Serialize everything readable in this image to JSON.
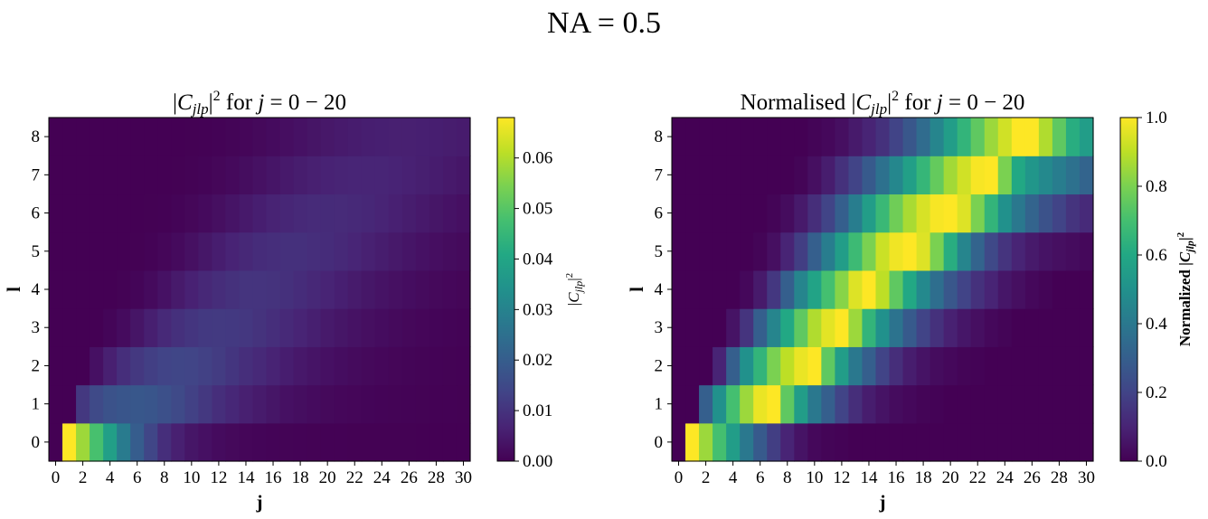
{
  "figure": {
    "suptitle": "NA = 0.5"
  },
  "chart_data": [
    {
      "type": "heatmap",
      "title": "|C_jlp|² for j = 0 − 20",
      "xlabel": "j",
      "ylabel": "l",
      "colorbar_label": "|C_jlp|²",
      "colormap": "viridis",
      "x_range": [
        -0.5,
        30.5
      ],
      "y_range": [
        -0.5,
        8.5
      ],
      "x_ticks": [
        0,
        2,
        4,
        6,
        8,
        10,
        12,
        14,
        16,
        18,
        20,
        22,
        24,
        26,
        28,
        30
      ],
      "y_ticks": [
        0,
        1,
        2,
        3,
        4,
        5,
        6,
        7,
        8
      ],
      "color_range": [
        0,
        0.068
      ],
      "colorbar_ticks": [
        "0.00",
        "0.01",
        "0.02",
        "0.03",
        "0.04",
        "0.05",
        "0.06"
      ],
      "columns_j": [
        0,
        1,
        2,
        3,
        4,
        5,
        6,
        7,
        8,
        9,
        10,
        11,
        12,
        13,
        14,
        15,
        16,
        17,
        18,
        19,
        20,
        21,
        22,
        23,
        24,
        25,
        26,
        27,
        28,
        29,
        30
      ],
      "rows_l": [
        0,
        1,
        2,
        3,
        4,
        5,
        6,
        7,
        8
      ],
      "values": [
        [
          0,
          0.068,
          0.058,
          0.048,
          0.038,
          0.028,
          0.02,
          0.014,
          0.009,
          0.006,
          0.004,
          0.003,
          0.002,
          0.0015,
          0.001,
          0.0008,
          0.0006,
          0.0005,
          0.0004,
          0.0003,
          0.0002,
          0.0002,
          0.0001,
          0.0001,
          0.0001,
          0.0001,
          0.0001,
          0,
          0,
          0,
          0
        ],
        [
          0,
          0,
          0.011,
          0.015,
          0.017,
          0.018,
          0.0185,
          0.018,
          0.0165,
          0.015,
          0.013,
          0.011,
          0.009,
          0.0075,
          0.006,
          0.005,
          0.004,
          0.003,
          0.0025,
          0.002,
          0.0015,
          0.0012,
          0.001,
          0.0008,
          0.0006,
          0.0005,
          0.0004,
          0.0003,
          0.0002,
          0.0002,
          0.0001
        ],
        [
          0,
          0,
          0,
          0.003,
          0.006,
          0.009,
          0.011,
          0.0125,
          0.0135,
          0.014,
          0.0138,
          0.013,
          0.0118,
          0.0105,
          0.009,
          0.0078,
          0.0066,
          0.0055,
          0.0045,
          0.0037,
          0.003,
          0.0024,
          0.0019,
          0.0015,
          0.0012,
          0.0009,
          0.0007,
          0.0005,
          0.0004,
          0.0003,
          0.0002
        ],
        [
          0,
          0,
          0,
          0,
          0.0008,
          0.002,
          0.0038,
          0.0058,
          0.0078,
          0.0093,
          0.0105,
          0.0112,
          0.0115,
          0.0113,
          0.0108,
          0.01,
          0.009,
          0.0079,
          0.0068,
          0.0058,
          0.0048,
          0.004,
          0.0033,
          0.0027,
          0.0022,
          0.0017,
          0.0013,
          0.001,
          0.0008,
          0.0006,
          0.0004
        ],
        [
          0,
          0,
          0,
          0,
          0,
          0.0003,
          0.0008,
          0.0018,
          0.0032,
          0.0048,
          0.0063,
          0.0077,
          0.0088,
          0.0096,
          0.0101,
          0.0102,
          0.0099,
          0.0094,
          0.0086,
          0.0077,
          0.0068,
          0.0059,
          0.005,
          0.0042,
          0.0035,
          0.0029,
          0.0024,
          0.0019,
          0.0015,
          0.0012,
          0.0009
        ],
        [
          0,
          0,
          0,
          0,
          0,
          0,
          0.0001,
          0.0004,
          0.001,
          0.0018,
          0.0029,
          0.0042,
          0.0055,
          0.0067,
          0.0077,
          0.0085,
          0.009,
          0.0093,
          0.0093,
          0.009,
          0.0085,
          0.0078,
          0.007,
          0.0062,
          0.0054,
          0.0046,
          0.0039,
          0.0032,
          0.0026,
          0.0021,
          0.0017
        ],
        [
          0,
          0,
          0,
          0,
          0,
          0,
          0,
          0.0001,
          0.0002,
          0.0006,
          0.0011,
          0.0018,
          0.0027,
          0.0037,
          0.0047,
          0.0057,
          0.0066,
          0.0073,
          0.0078,
          0.0082,
          0.0083,
          0.0082,
          0.0079,
          0.0074,
          0.0068,
          0.0061,
          0.0054,
          0.0047,
          0.004,
          0.0034,
          0.0028
        ],
        [
          0,
          0,
          0,
          0,
          0,
          0,
          0,
          0,
          0,
          0.0001,
          0.0003,
          0.0006,
          0.0011,
          0.0016,
          0.0023,
          0.0031,
          0.0039,
          0.0047,
          0.0054,
          0.006,
          0.0065,
          0.0069,
          0.0071,
          0.0071,
          0.007,
          0.0067,
          0.0063,
          0.0058,
          0.0053,
          0.0047,
          0.0041
        ],
        [
          0,
          0,
          0,
          0,
          0,
          0,
          0,
          0,
          0,
          0,
          0.0001,
          0.0002,
          0.0004,
          0.0007,
          0.001,
          0.0015,
          0.002,
          0.0026,
          0.0032,
          0.0038,
          0.0044,
          0.0049,
          0.0053,
          0.0057,
          0.0059,
          0.006,
          0.006,
          0.0059,
          0.0057,
          0.0054,
          0.0051
        ]
      ]
    },
    {
      "type": "heatmap",
      "title": "Normalised |C_jlp|² for j = 0 − 20",
      "xlabel": "j",
      "ylabel": "l",
      "colorbar_label": "Normalized |C_jlp|²",
      "colormap": "viridis",
      "x_range": [
        -0.5,
        30.5
      ],
      "y_range": [
        -0.5,
        8.5
      ],
      "x_ticks": [
        0,
        2,
        4,
        6,
        8,
        10,
        12,
        14,
        16,
        18,
        20,
        22,
        24,
        26,
        28,
        30
      ],
      "y_ticks": [
        0,
        1,
        2,
        3,
        4,
        5,
        6,
        7,
        8
      ],
      "color_range": [
        0,
        1
      ],
      "colorbar_ticks": [
        "0.0",
        "0.2",
        "0.4",
        "0.6",
        "0.8",
        "1.0"
      ],
      "columns_j": [
        0,
        1,
        2,
        3,
        4,
        5,
        6,
        7,
        8,
        9,
        10,
        11,
        12,
        13,
        14,
        15,
        16,
        17,
        18,
        19,
        20,
        21,
        22,
        23,
        24,
        25,
        26,
        27,
        28,
        29,
        30
      ],
      "rows_l": [
        0,
        1,
        2,
        3,
        4,
        5,
        6,
        7,
        8
      ],
      "values": [
        [
          0,
          1.0,
          0.85,
          0.7,
          0.55,
          0.4,
          0.28,
          0.18,
          0.1,
          0.05,
          0.02,
          0.01,
          0.005,
          0,
          0,
          0,
          0,
          0,
          0,
          0,
          0,
          0,
          0,
          0,
          0,
          0,
          0,
          0,
          0,
          0,
          0
        ],
        [
          0,
          0,
          0.3,
          0.5,
          0.7,
          0.85,
          0.97,
          1.0,
          0.75,
          0.55,
          0.4,
          0.3,
          0.2,
          0.13,
          0.08,
          0.05,
          0.03,
          0.02,
          0.01,
          0.005,
          0,
          0,
          0,
          0,
          0,
          0,
          0,
          0,
          0,
          0,
          0
        ],
        [
          0,
          0,
          0,
          0.1,
          0.3,
          0.5,
          0.65,
          0.8,
          0.9,
          0.97,
          1.0,
          0.75,
          0.55,
          0.4,
          0.3,
          0.2,
          0.13,
          0.08,
          0.05,
          0.03,
          0.02,
          0.01,
          0.005,
          0,
          0,
          0,
          0,
          0,
          0,
          0,
          0
        ],
        [
          0,
          0,
          0,
          0,
          0.05,
          0.15,
          0.3,
          0.45,
          0.6,
          0.75,
          0.88,
          0.96,
          1.0,
          0.85,
          0.65,
          0.5,
          0.38,
          0.28,
          0.2,
          0.14,
          0.09,
          0.06,
          0.04,
          0.02,
          0.01,
          0,
          0,
          0,
          0,
          0,
          0
        ],
        [
          0,
          0,
          0,
          0,
          0,
          0.02,
          0.07,
          0.16,
          0.3,
          0.45,
          0.58,
          0.7,
          0.82,
          0.95,
          1.0,
          0.9,
          0.75,
          0.6,
          0.47,
          0.36,
          0.27,
          0.2,
          0.14,
          0.1,
          0.06,
          0.04,
          0.02,
          0.01,
          0,
          0,
          0
        ],
        [
          0,
          0,
          0,
          0,
          0,
          0,
          0.01,
          0.04,
          0.1,
          0.18,
          0.3,
          0.42,
          0.55,
          0.68,
          0.8,
          0.92,
          0.98,
          1.0,
          0.95,
          0.8,
          0.62,
          0.45,
          0.32,
          0.22,
          0.15,
          0.1,
          0.07,
          0.05,
          0.04,
          0.03,
          0.02
        ],
        [
          0,
          0,
          0,
          0,
          0,
          0,
          0,
          0.01,
          0.03,
          0.07,
          0.13,
          0.2,
          0.3,
          0.42,
          0.55,
          0.67,
          0.78,
          0.87,
          0.94,
          0.99,
          1.0,
          0.95,
          0.8,
          0.65,
          0.5,
          0.4,
          0.32,
          0.25,
          0.2,
          0.15,
          0.12
        ],
        [
          0,
          0,
          0,
          0,
          0,
          0,
          0,
          0,
          0,
          0.01,
          0.04,
          0.08,
          0.14,
          0.2,
          0.28,
          0.37,
          0.46,
          0.56,
          0.66,
          0.76,
          0.86,
          0.93,
          0.99,
          1.0,
          0.8,
          0.6,
          0.52,
          0.47,
          0.42,
          0.37,
          0.32
        ],
        [
          0,
          0,
          0,
          0,
          0,
          0,
          0,
          0,
          0,
          0,
          0.01,
          0.02,
          0.04,
          0.07,
          0.1,
          0.14,
          0.2,
          0.27,
          0.35,
          0.45,
          0.55,
          0.65,
          0.75,
          0.85,
          0.93,
          1.0,
          1.0,
          0.88,
          0.75,
          0.62,
          0.55
        ]
      ]
    }
  ]
}
